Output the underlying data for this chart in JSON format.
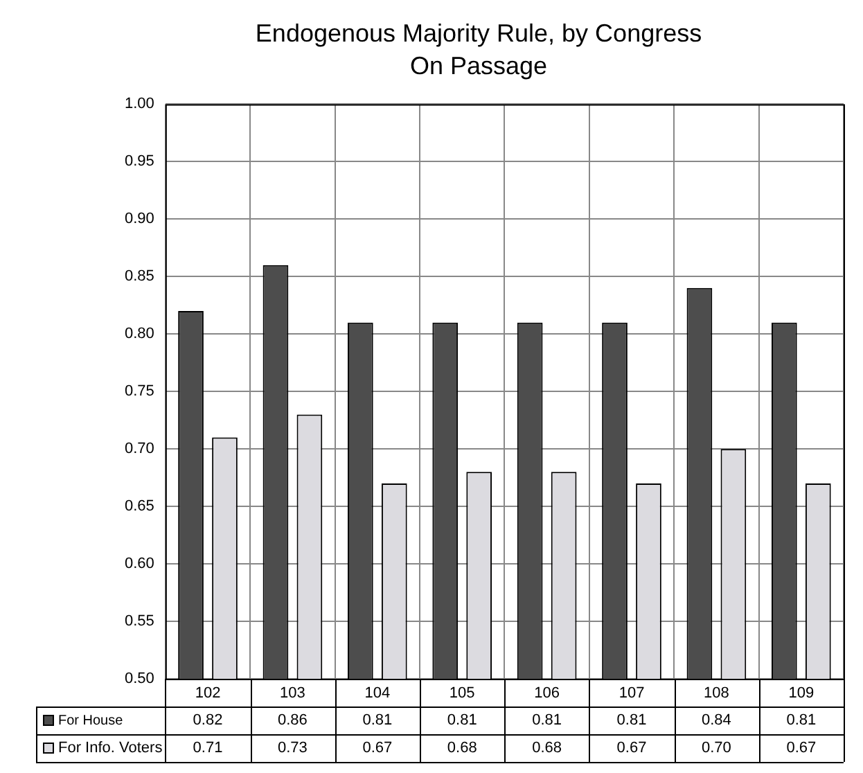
{
  "chart_data": {
    "type": "bar",
    "title": "Endogenous Majority Rule, by Congress",
    "subtitle": "On Passage",
    "categories": [
      "102",
      "103",
      "104",
      "105",
      "106",
      "107",
      "108",
      "109"
    ],
    "series": [
      {
        "name": "For House",
        "color": "#4d4d4d",
        "values": [
          0.82,
          0.86,
          0.81,
          0.81,
          0.81,
          0.81,
          0.84,
          0.81
        ],
        "value_labels": [
          "0.82",
          "0.86",
          "0.81",
          "0.81",
          "0.81",
          "0.81",
          "0.84",
          "0.81"
        ]
      },
      {
        "name": "For Info. Voters",
        "color": "#dcdbe0",
        "values": [
          0.71,
          0.73,
          0.67,
          0.68,
          0.68,
          0.67,
          0.7,
          0.67
        ],
        "value_labels": [
          "0.71",
          "0.73",
          "0.67",
          "0.68",
          "0.68",
          "0.67",
          "0.70",
          "0.67"
        ]
      }
    ],
    "ylim": [
      0.5,
      1.0
    ],
    "yticks": [
      {
        "value": 0.5,
        "label": "0.50"
      },
      {
        "value": 0.55,
        "label": "0.55"
      },
      {
        "value": 0.6,
        "label": "0.60"
      },
      {
        "value": 0.65,
        "label": "0.65"
      },
      {
        "value": 0.7,
        "label": "0.70"
      },
      {
        "value": 0.75,
        "label": "0.75"
      },
      {
        "value": 0.8,
        "label": "0.80"
      },
      {
        "value": 0.85,
        "label": "0.85"
      },
      {
        "value": 0.9,
        "label": "0.90"
      },
      {
        "value": 0.95,
        "label": "0.95"
      },
      {
        "value": 1.0,
        "label": "1.00"
      }
    ],
    "grid": true,
    "legend": "bottom"
  }
}
